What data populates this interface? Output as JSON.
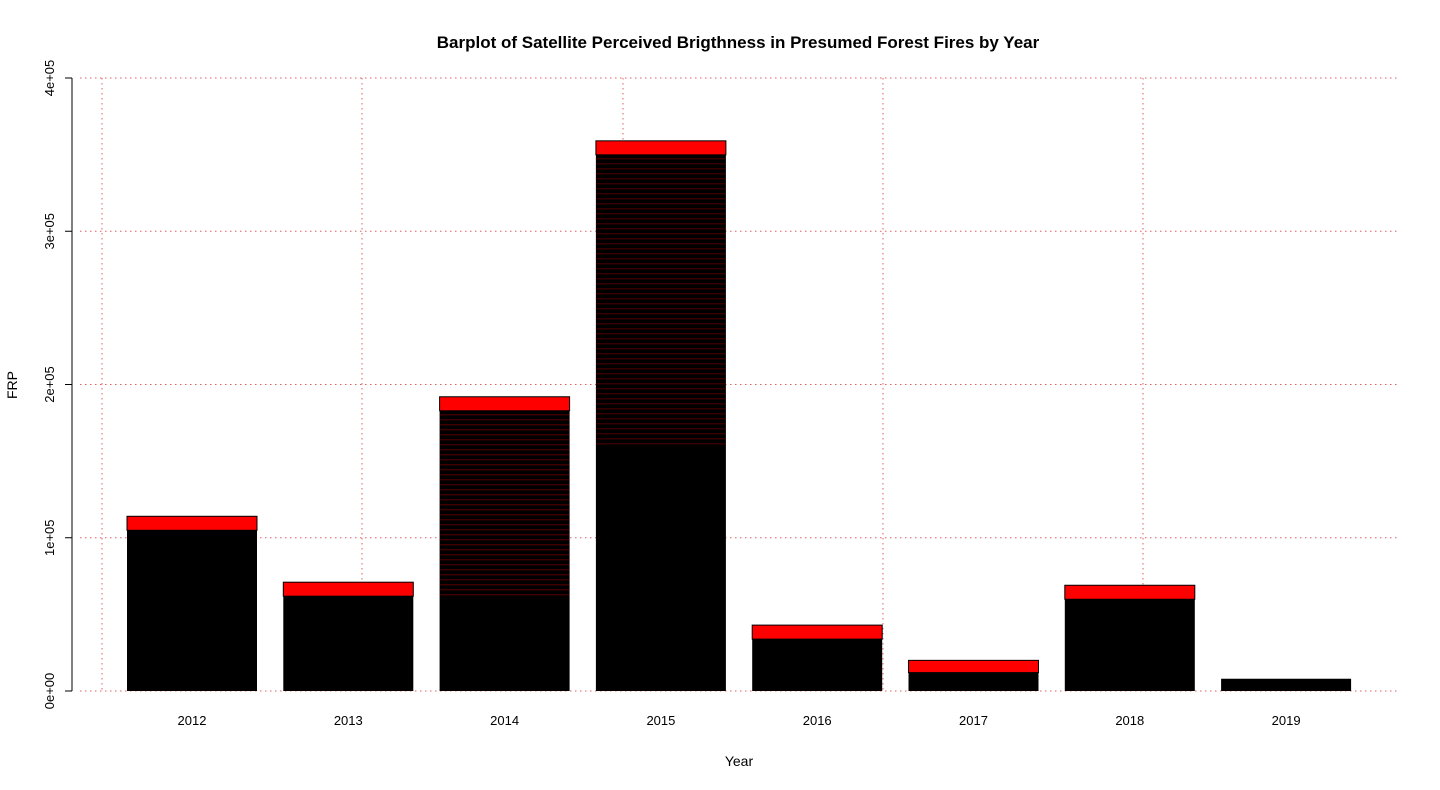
{
  "chart_data": {
    "type": "bar",
    "title": "Barplot of Satellite Perceived Brigthness in Presumed Forest Fires by Year",
    "xlabel": "Year",
    "ylabel": "FRP",
    "categories": [
      "2012",
      "2013",
      "2014",
      "2015",
      "2016",
      "2017",
      "2018",
      "2019"
    ],
    "values": [
      114000,
      71000,
      192000,
      359000,
      43000,
      20000,
      69000,
      8000
    ],
    "ylim": [
      0,
      400000
    ],
    "y_ticks": [
      0,
      100000,
      200000,
      300000,
      400000
    ],
    "y_tick_labels": [
      "0e+00",
      "1e+05",
      "2e+05",
      "3e+05",
      "4e+05"
    ],
    "grid": "dotted",
    "colors": {
      "bar_fill": "#000000",
      "bar_highlight": "#ff0000",
      "grid": "#e06060"
    }
  }
}
